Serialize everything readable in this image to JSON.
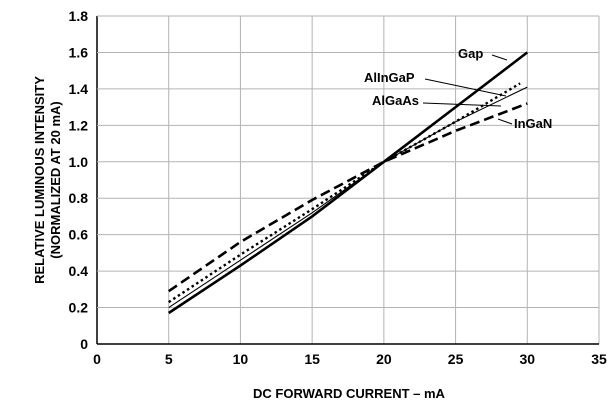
{
  "chart_data": {
    "type": "line",
    "xlabel": "DC FORWARD CURRENT – mA",
    "ylabel": "RELATIVE LUMINOUS INTENSITY",
    "ylabel2": "(NORMALIZED AT 20 mA)",
    "xlim": [
      0,
      35
    ],
    "ylim": [
      0,
      1.8
    ],
    "x_ticks": [
      "0",
      "5",
      "10",
      "15",
      "20",
      "25",
      "30",
      "35"
    ],
    "y_ticks": [
      "0",
      "0.2",
      "0.4",
      "0.6",
      "0.8",
      "1.0",
      "1.2",
      "1.4",
      "1.6",
      "1.8"
    ],
    "grid": true,
    "series": [
      {
        "name": "Gap",
        "style": "solid-thick",
        "x": [
          5,
          10,
          15,
          20,
          25,
          30
        ],
        "y": [
          0.17,
          0.43,
          0.7,
          1.0,
          1.3,
          1.6
        ]
      },
      {
        "name": "AlInGaP",
        "style": "dotted",
        "x": [
          5,
          10,
          15,
          20,
          25,
          29.5
        ],
        "y": [
          0.23,
          0.49,
          0.74,
          1.0,
          1.22,
          1.43
        ]
      },
      {
        "name": "AlGaAs",
        "style": "solid-thin",
        "x": [
          5,
          10,
          15,
          20,
          25,
          30
        ],
        "y": [
          0.2,
          0.46,
          0.72,
          1.0,
          1.22,
          1.41
        ]
      },
      {
        "name": "InGaN",
        "style": "dashed",
        "x": [
          5,
          10,
          15,
          20,
          25,
          30
        ],
        "y": [
          0.29,
          0.56,
          0.79,
          1.0,
          1.17,
          1.32
        ]
      }
    ],
    "annotations": [
      "Gap",
      "AlInGaP",
      "AlGaAs",
      "InGaN"
    ]
  }
}
